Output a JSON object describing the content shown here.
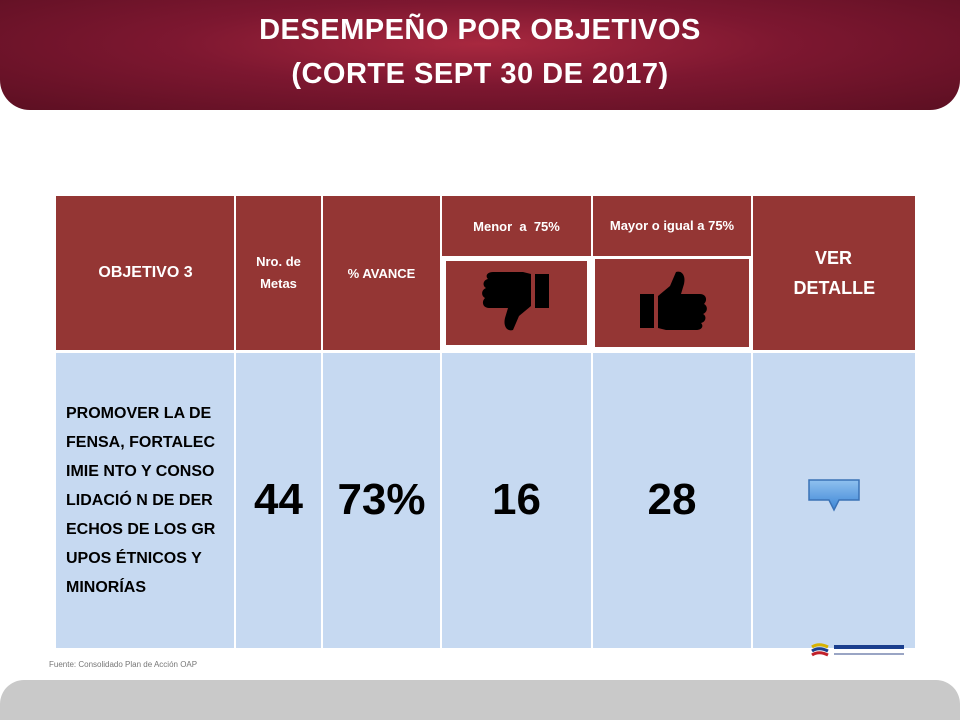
{
  "header": {
    "title_line1": "DESEMPEÑO POR OBJETIVOS",
    "title_line2": "(CORTE SEPT 30 DE 2017)"
  },
  "table": {
    "col_objetivo": "OBJETIVO 3",
    "col_metas": "Nro. de Metas",
    "col_avance": "% AVANCE",
    "col_menor": "Menor  a  75%",
    "col_mayor": "Mayor o igual a 75%",
    "col_detalle": "VER DETALLE",
    "icon_menor": "thumbs-down-icon",
    "icon_mayor": "thumbs-up-icon",
    "row": {
      "objetivo": "PROMOVER LA DEFENSA, FORTALECIMIE NTO Y CONSOLIDACIÓ N DE DERECHOS DE LOS GRUPOS ÉTNICOS Y MINORÍAS",
      "metas": "44",
      "avance": "73%",
      "menor": "16",
      "mayor": "28"
    }
  },
  "footer": {
    "source": "Fuente: Consolidado Plan de Acción OAP"
  },
  "colors": {
    "header_red": "#943634",
    "body_blue": "#c6d9f1",
    "banner": "#7d1730"
  }
}
